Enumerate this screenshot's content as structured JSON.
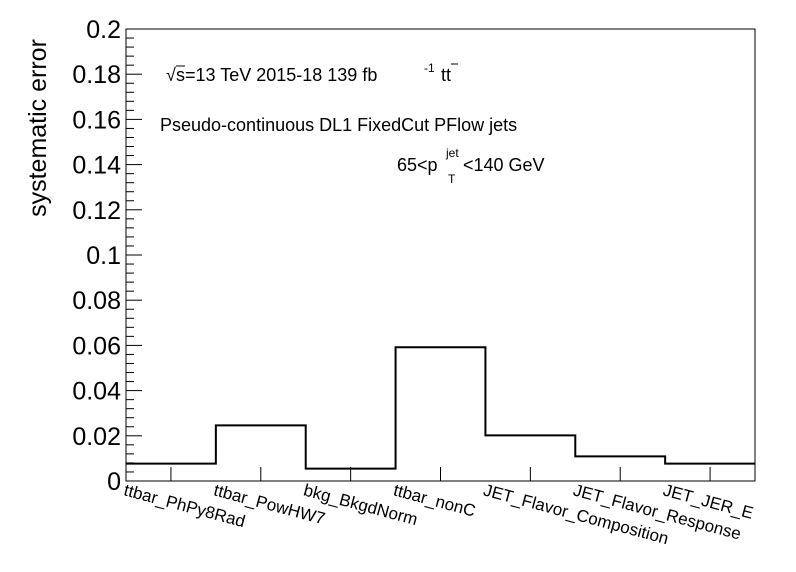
{
  "chart_data": {
    "type": "step-histogram",
    "ylabel": "systematic error",
    "ylim": [
      0,
      0.2
    ],
    "yticks": [
      "0",
      "0.02",
      "0.04",
      "0.06",
      "0.08",
      "0.1",
      "0.12",
      "0.14",
      "0.16",
      "0.18",
      "0.2"
    ],
    "categories": [
      "ttbar_PhPy8Rad",
      "ttbar_PowHW7",
      "bkg_BkgdNorm",
      "ttbar_nonC",
      "JET_Flavor_Composition",
      "JET_Flavor_Response",
      "JET_JER_E"
    ],
    "values": [
      0.0077,
      0.0246,
      0.0055,
      0.0592,
      0.0202,
      0.0109,
      0.0077
    ],
    "annotations": {
      "energy": {
        "sqrt": "√",
        "s_text": "s=13 TeV  2015-18  139 fb",
        "exponent": "-1",
        "process": "tt"
      },
      "tagger": "Pseudo-continuous DL1 FixedCut PFlow jets",
      "pt_range": {
        "low": "65<p",
        "sub": "T",
        "sup": "jet",
        "high": "<140 GeV"
      }
    }
  }
}
